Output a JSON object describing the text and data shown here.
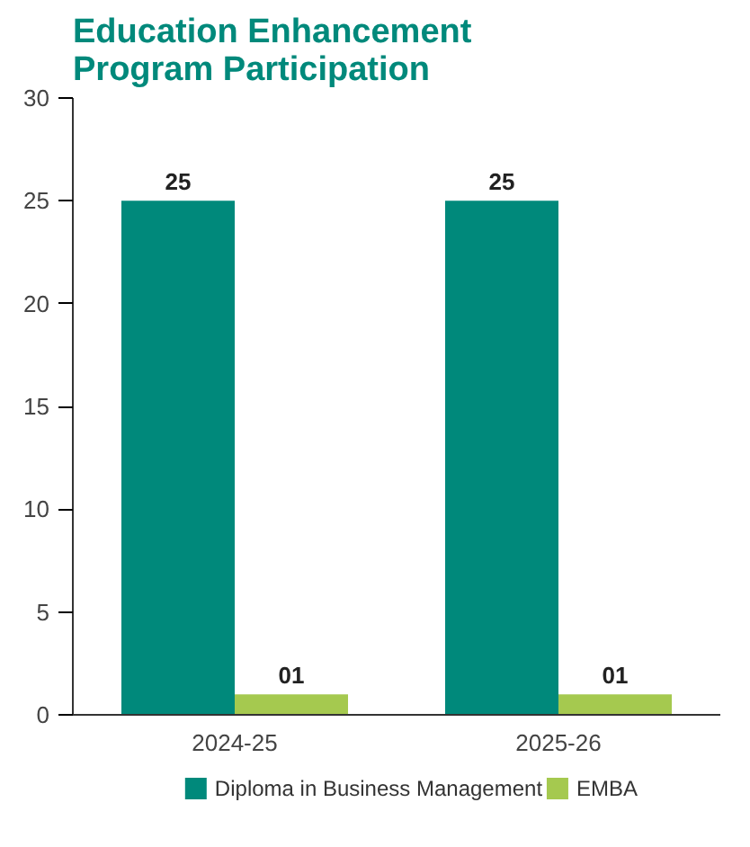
{
  "chart_data": {
    "type": "bar",
    "title": "Education Enhancement\nProgram Participation",
    "categories": [
      "2024-25",
      "2025-26"
    ],
    "series": [
      {
        "name": "Diploma in Business Management",
        "color": "#00897b",
        "values": [
          25,
          25
        ],
        "value_labels": [
          "25",
          "25"
        ]
      },
      {
        "name": "EMBA",
        "color": "#a5c94f",
        "values": [
          1,
          1
        ],
        "value_labels": [
          "01",
          "01"
        ]
      }
    ],
    "ylim": [
      0,
      30
    ],
    "yticks": [
      0,
      5,
      10,
      15,
      20,
      25,
      30
    ],
    "grid": false,
    "legend": "bottom"
  }
}
